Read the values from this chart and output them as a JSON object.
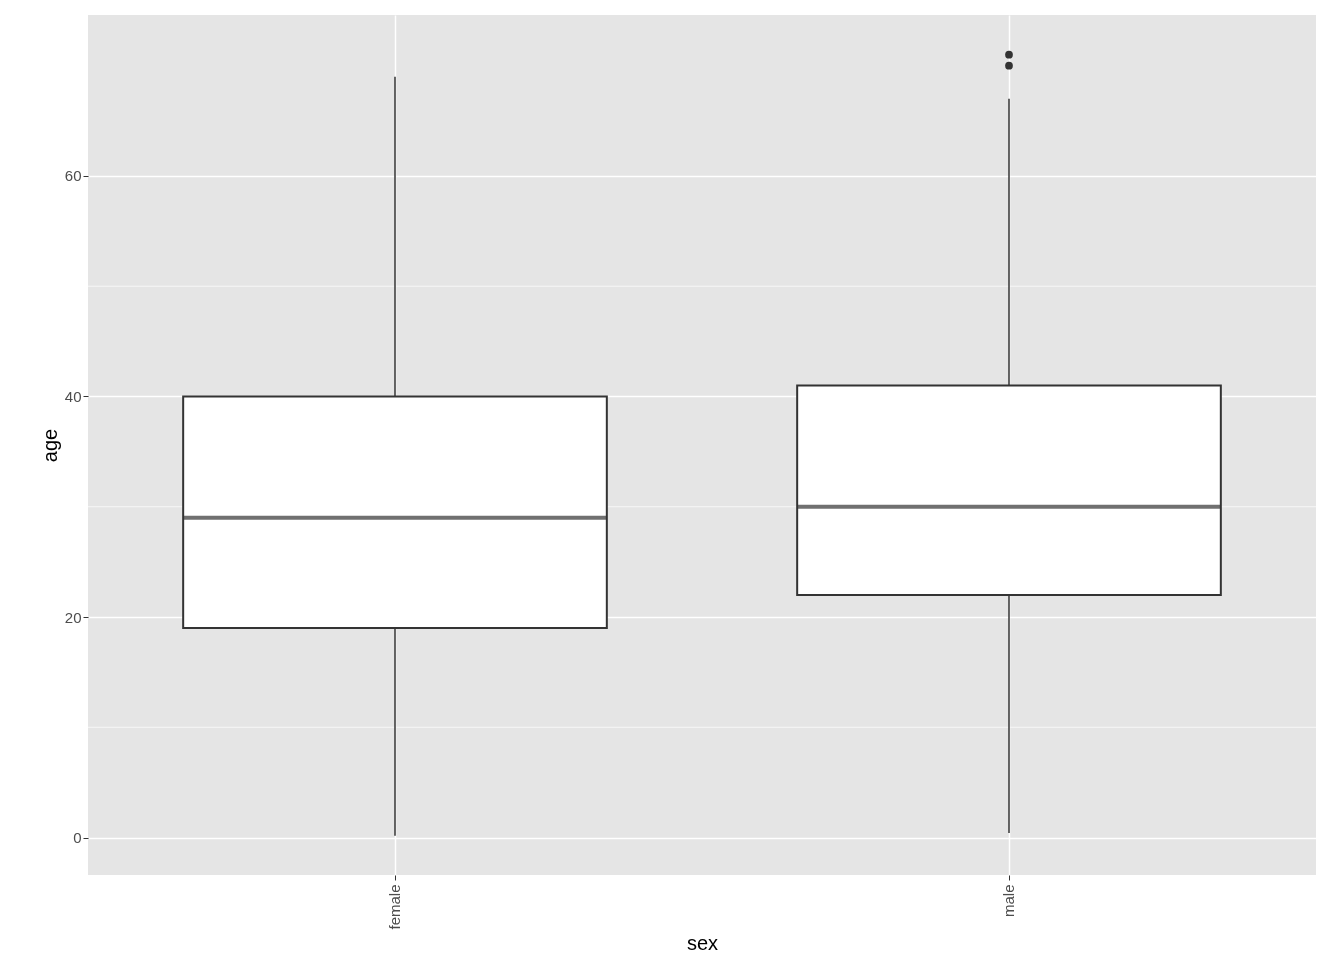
{
  "chart_data": {
    "type": "box",
    "xlabel": "sex",
    "ylabel": "age",
    "categories": [
      "female",
      "male"
    ],
    "boxes": [
      {
        "low": 0.17,
        "q1": 19,
        "median": 29,
        "q3": 40,
        "high": 69
      },
      {
        "low": 0.4,
        "q1": 22,
        "median": 30,
        "q3": 41,
        "high": 67,
        "outliers": [
          70,
          71
        ]
      }
    ],
    "ylim": [
      -3.4,
      74.6
    ],
    "yticks": [
      0,
      20,
      40,
      60
    ],
    "grid": true
  }
}
